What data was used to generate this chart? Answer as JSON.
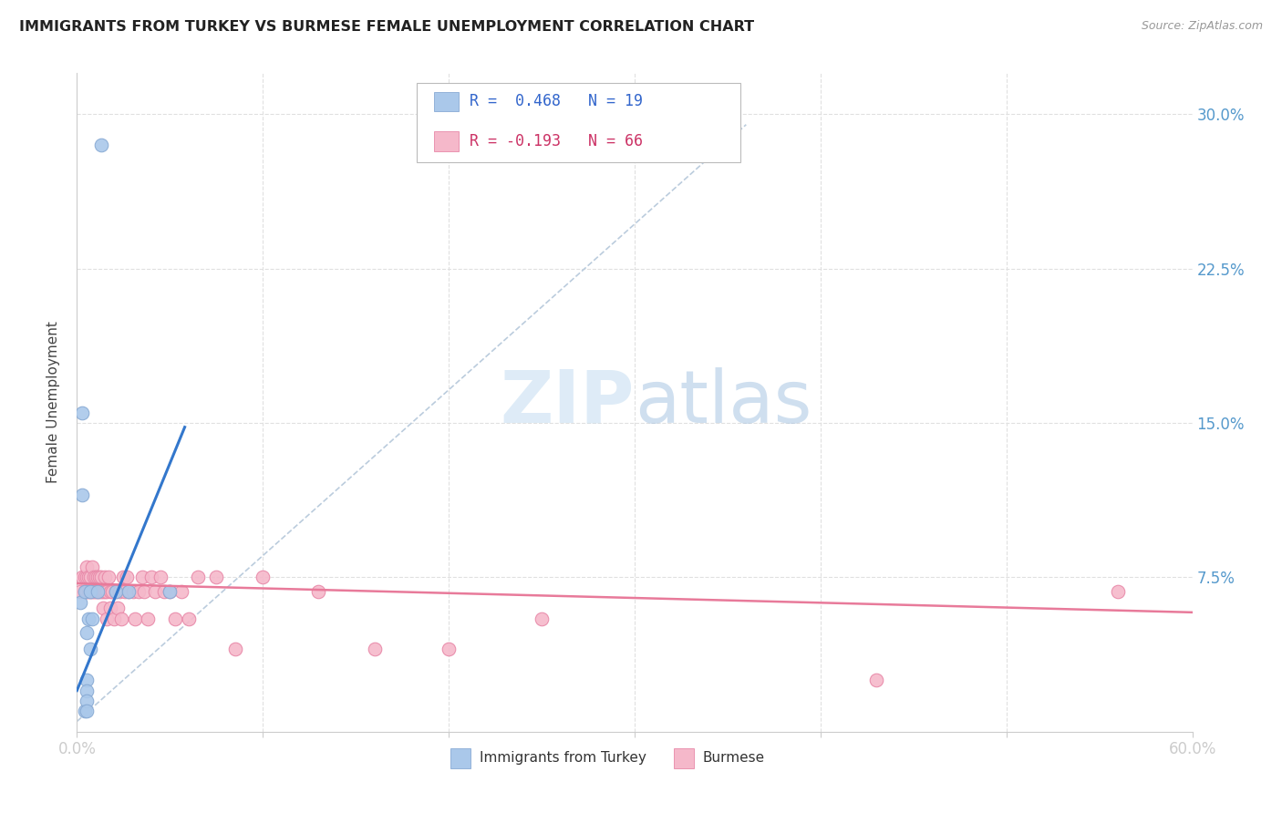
{
  "title": "IMMIGRANTS FROM TURKEY VS BURMESE FEMALE UNEMPLOYMENT CORRELATION CHART",
  "source": "Source: ZipAtlas.com",
  "ylabel": "Female Unemployment",
  "xlim": [
    0.0,
    0.6
  ],
  "ylim": [
    0.0,
    0.32
  ],
  "xticks": [
    0.0,
    0.1,
    0.2,
    0.3,
    0.4,
    0.5,
    0.6
  ],
  "xticklabels": [
    "0.0%",
    "",
    "",
    "",
    "",
    "",
    "60.0%"
  ],
  "yticks_right": [
    0.0,
    0.075,
    0.15,
    0.225,
    0.3
  ],
  "ytick_right_labels": [
    "",
    "7.5%",
    "15.0%",
    "22.5%",
    "30.0%"
  ],
  "background_color": "#ffffff",
  "grid_color": "#e0e0e0",
  "turkey_color": "#aac8ea",
  "turkey_edge_color": "#88aad4",
  "burmese_color": "#f5b8ca",
  "burmese_edge_color": "#e888a8",
  "turkey_scatter_x": [
    0.002,
    0.013,
    0.003,
    0.003,
    0.004,
    0.007,
    0.011,
    0.004,
    0.021,
    0.005,
    0.007,
    0.005,
    0.005,
    0.005,
    0.006,
    0.005,
    0.008,
    0.05,
    0.028
  ],
  "turkey_scatter_y": [
    0.063,
    0.285,
    0.155,
    0.115,
    0.068,
    0.068,
    0.068,
    0.01,
    0.068,
    0.048,
    0.04,
    0.025,
    0.02,
    0.015,
    0.055,
    0.01,
    0.055,
    0.068,
    0.068
  ],
  "burmese_scatter_x": [
    0.002,
    0.003,
    0.004,
    0.004,
    0.005,
    0.005,
    0.005,
    0.006,
    0.006,
    0.007,
    0.007,
    0.008,
    0.008,
    0.009,
    0.009,
    0.01,
    0.01,
    0.011,
    0.011,
    0.012,
    0.012,
    0.013,
    0.013,
    0.014,
    0.014,
    0.015,
    0.015,
    0.016,
    0.016,
    0.017,
    0.018,
    0.018,
    0.019,
    0.02,
    0.021,
    0.022,
    0.023,
    0.024,
    0.025,
    0.026,
    0.027,
    0.028,
    0.03,
    0.031,
    0.033,
    0.035,
    0.036,
    0.038,
    0.04,
    0.042,
    0.045,
    0.047,
    0.05,
    0.053,
    0.056,
    0.06,
    0.065,
    0.075,
    0.085,
    0.1,
    0.13,
    0.16,
    0.2,
    0.25,
    0.43,
    0.56
  ],
  "burmese_scatter_y": [
    0.068,
    0.075,
    0.068,
    0.075,
    0.068,
    0.075,
    0.08,
    0.068,
    0.075,
    0.068,
    0.075,
    0.068,
    0.08,
    0.068,
    0.075,
    0.068,
    0.075,
    0.068,
    0.075,
    0.068,
    0.075,
    0.068,
    0.075,
    0.068,
    0.06,
    0.075,
    0.068,
    0.055,
    0.068,
    0.075,
    0.068,
    0.06,
    0.068,
    0.055,
    0.068,
    0.06,
    0.068,
    0.055,
    0.075,
    0.068,
    0.075,
    0.068,
    0.068,
    0.055,
    0.068,
    0.075,
    0.068,
    0.055,
    0.075,
    0.068,
    0.075,
    0.068,
    0.068,
    0.055,
    0.068,
    0.055,
    0.075,
    0.075,
    0.04,
    0.075,
    0.068,
    0.04,
    0.04,
    0.055,
    0.025,
    0.068
  ],
  "turkey_line_x": [
    0.0,
    0.058
  ],
  "turkey_line_y": [
    0.02,
    0.148
  ],
  "burmese_line_x": [
    0.0,
    0.6
  ],
  "burmese_line_y": [
    0.072,
    0.058
  ],
  "turkey_trendline_x": [
    0.0,
    0.36
  ],
  "turkey_trendline_y": [
    0.005,
    0.295
  ],
  "legend_label_turkey": "Immigrants from Turkey",
  "legend_label_burmese": "Burmese",
  "watermark_zip_color": "#c8dff2",
  "watermark_atlas_color": "#a0c0e0"
}
